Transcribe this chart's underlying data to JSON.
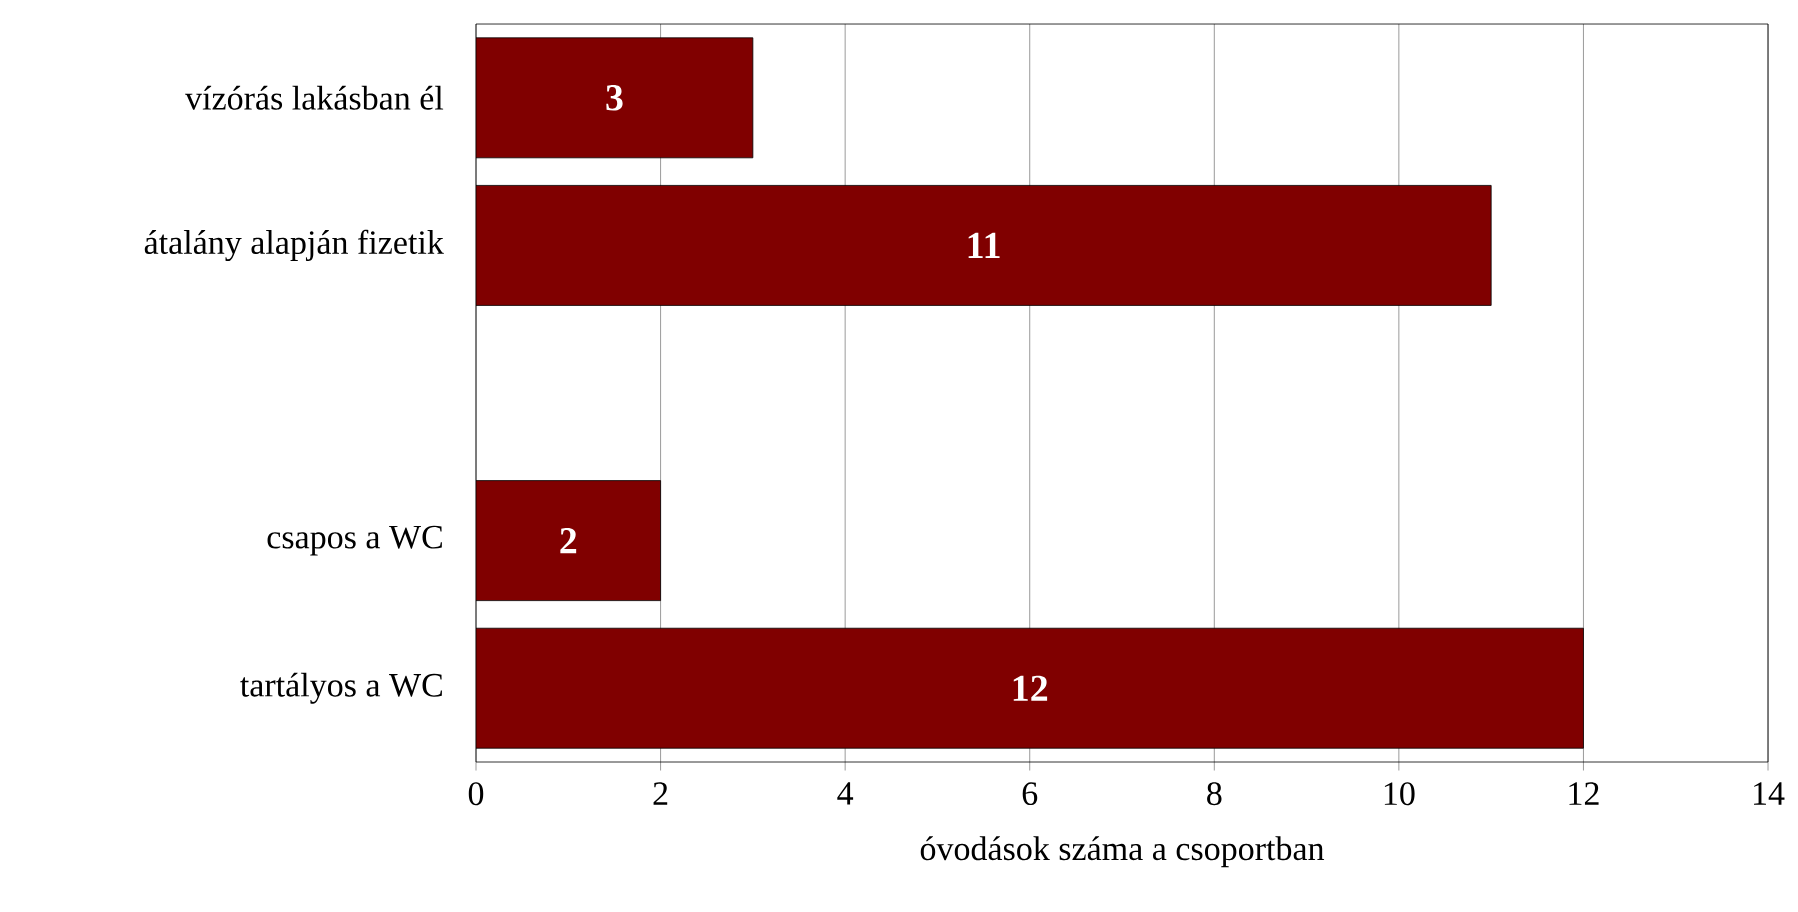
{
  "chart_data": {
    "type": "bar",
    "orientation": "horizontal",
    "xlabel": "óvodások száma a csoportban",
    "categories": [
      "vízórás lakásban él",
      "átalány alapján fizetik",
      null,
      "csapos a WC",
      "tartályos a WC"
    ],
    "values": [
      3,
      11,
      null,
      2,
      12
    ],
    "color": "#800000",
    "xlim": [
      0,
      14
    ],
    "xticks": [
      0,
      2,
      4,
      6,
      8,
      10,
      12,
      14
    ],
    "grid": "x",
    "data_labels": true
  }
}
